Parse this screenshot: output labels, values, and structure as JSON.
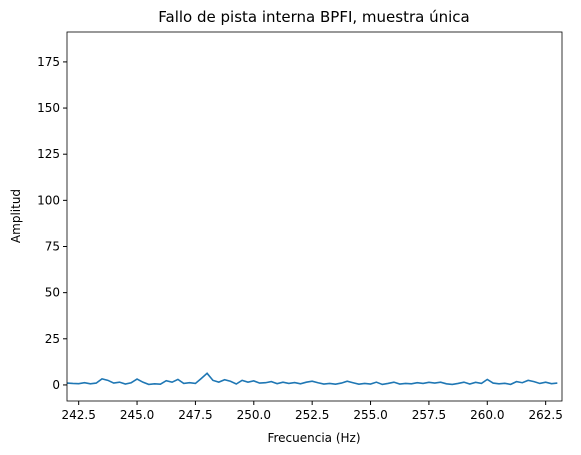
{
  "chart_data": {
    "type": "line",
    "title": "Fallo de pista interna BPFI, muestra única",
    "xlabel": "Frecuencia (Hz)",
    "ylabel": "Amplitud",
    "x": [
      242.0,
      242.25,
      242.5,
      242.75,
      243.0,
      243.25,
      243.5,
      243.75,
      244.0,
      244.25,
      244.5,
      244.75,
      245.0,
      245.25,
      245.5,
      245.75,
      246.0,
      246.25,
      246.5,
      246.75,
      247.0,
      247.25,
      247.5,
      247.75,
      248.0,
      248.25,
      248.5,
      248.75,
      249.0,
      249.25,
      249.5,
      249.75,
      250.0,
      250.25,
      250.5,
      250.75,
      251.0,
      251.25,
      251.5,
      251.75,
      252.0,
      252.25,
      252.5,
      252.75,
      253.0,
      253.25,
      253.5,
      253.75,
      254.0,
      254.25,
      254.5,
      254.75,
      255.0,
      255.25,
      255.5,
      255.75,
      256.0,
      256.25,
      256.5,
      256.75,
      257.0,
      257.25,
      257.5,
      257.75,
      258.0,
      258.25,
      258.5,
      258.75,
      259.0,
      259.25,
      259.5,
      259.75,
      260.0,
      260.25,
      260.5,
      260.75,
      261.0,
      261.25,
      261.5,
      261.75,
      262.0,
      262.25,
      262.5,
      262.75,
      263.0
    ],
    "series": [
      {
        "color": "#1f77b4",
        "values": [
          1.0,
          0.8,
          0.7,
          1.2,
          0.6,
          1.0,
          3.3,
          2.5,
          1.0,
          1.5,
          0.5,
          1.2,
          3.2,
          1.5,
          0.3,
          0.6,
          0.4,
          2.3,
          1.5,
          3.0,
          0.8,
          1.2,
          0.8,
          3.5,
          6.3,
          2.5,
          1.5,
          2.8,
          2.0,
          0.5,
          2.5,
          1.5,
          2.2,
          1.0,
          1.2,
          1.8,
          0.7,
          1.5,
          0.8,
          1.3,
          0.6,
          1.5,
          2.0,
          1.2,
          0.5,
          0.8,
          0.4,
          1.0,
          2.0,
          1.2,
          0.4,
          0.8,
          0.5,
          1.5,
          0.3,
          0.8,
          1.5,
          0.5,
          0.8,
          0.6,
          1.2,
          0.8,
          1.4,
          1.0,
          1.5,
          0.6,
          0.3,
          0.8,
          1.5,
          0.5,
          1.4,
          0.8,
          3.0,
          1.0,
          0.6,
          0.9,
          0.3,
          1.8,
          1.2,
          2.5,
          1.8,
          0.8,
          1.5,
          0.7,
          1.0
        ]
      }
    ],
    "xlim": [
      242.0,
      263.2
    ],
    "ylim": [
      -8.7,
      191.2
    ],
    "xticks": [
      242.5,
      {
        "value": 245,
        "label": "245.0"
      },
      247.5,
      {
        "value": 250,
        "label": "250.0"
      },
      252.5,
      {
        "value": 255,
        "label": "255.0"
      },
      257.5,
      {
        "value": 260,
        "label": "260.0"
      },
      262.5
    ],
    "yticks": [
      0,
      25,
      50,
      75,
      100,
      125,
      150,
      175
    ]
  }
}
